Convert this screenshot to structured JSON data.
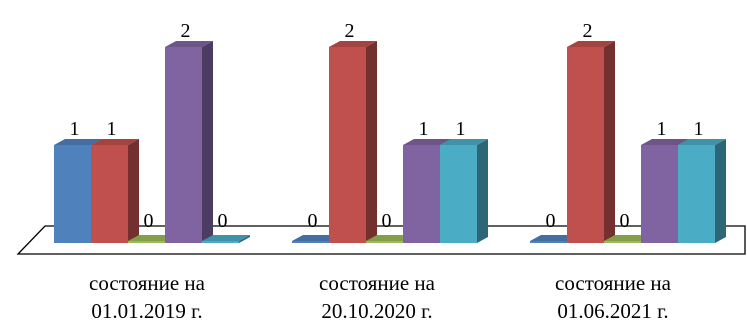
{
  "chart_data": {
    "type": "bar",
    "style": "3d-clustered",
    "categories": [
      [
        "состояние на",
        "01.01.2019 г."
      ],
      [
        "состояние на",
        "20.10.2020 г."
      ],
      [
        "состояние на",
        "01.06.2021 г."
      ]
    ],
    "series": [
      {
        "color": "#4f81bd",
        "values": [
          1,
          0,
          0
        ]
      },
      {
        "color": "#c0504d",
        "values": [
          1,
          2,
          2
        ]
      },
      {
        "color": "#9bbb59",
        "values": [
          0,
          0,
          0
        ]
      },
      {
        "color": "#8064a2",
        "values": [
          2,
          1,
          1
        ]
      },
      {
        "color": "#4bacc6",
        "values": [
          0,
          1,
          1
        ]
      }
    ],
    "data_labels": true,
    "legend": "none",
    "ylim": [
      0,
      2
    ]
  }
}
